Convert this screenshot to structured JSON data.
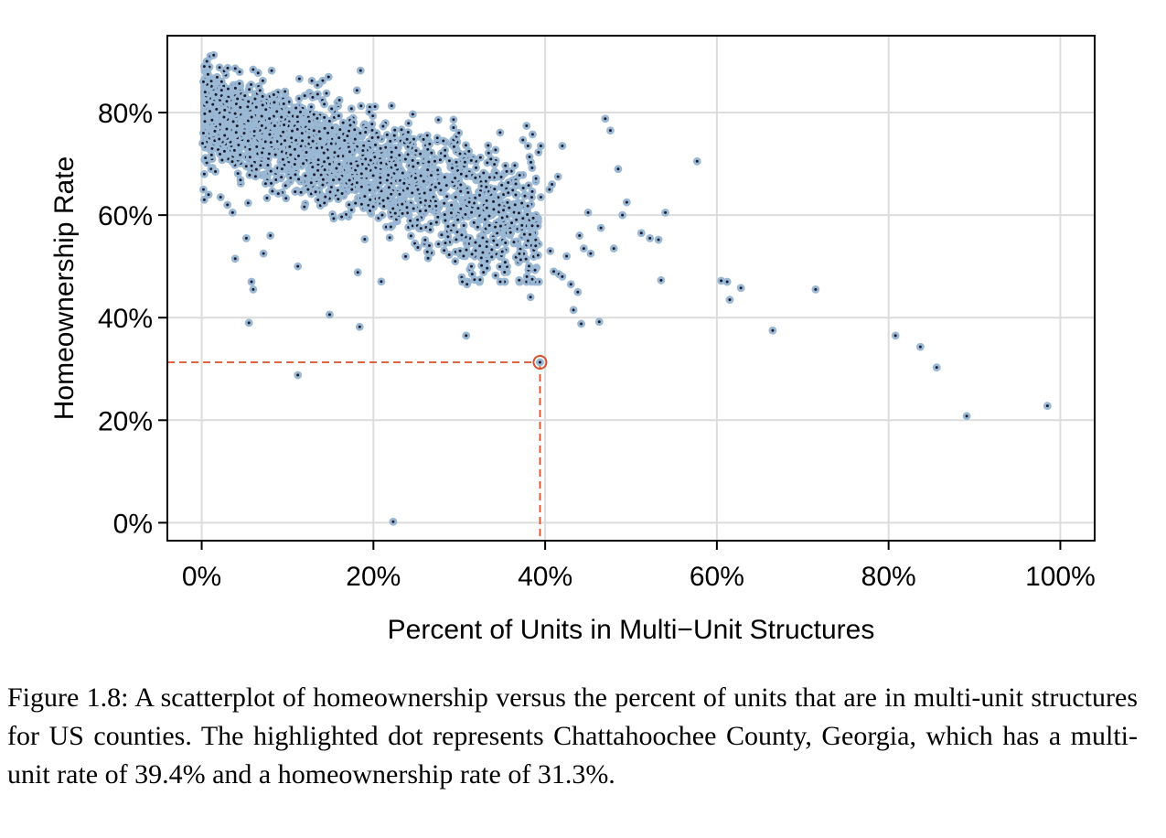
{
  "chart_data": {
    "type": "scatter",
    "xlabel": "Percent of Units in Multi−Unit Structures",
    "ylabel": "Homeownership Rate",
    "xlim": [
      -4,
      104
    ],
    "ylim": [
      -3.5,
      95
    ],
    "x_ticks": [
      "0%",
      "20%",
      "40%",
      "60%",
      "80%",
      "100%"
    ],
    "y_ticks": [
      "0%",
      "20%",
      "40%",
      "60%",
      "80%"
    ],
    "x_tick_values": [
      0,
      20,
      40,
      60,
      80,
      100
    ],
    "y_tick_values": [
      0,
      20,
      40,
      60,
      80
    ],
    "grid": true,
    "point_color": "#1a1a2e",
    "point_halo_color": "#9ab8d4",
    "highlight_color": "#d9502a",
    "highlight": {
      "x": 39.4,
      "y": 31.3
    },
    "bulk_points": 2900,
    "points": [
      [
        0.3,
        89
      ],
      [
        0.6,
        90
      ],
      [
        1.0,
        91
      ],
      [
        1.4,
        91.2
      ],
      [
        0.2,
        86
      ],
      [
        0.4,
        84
      ],
      [
        0.2,
        76
      ],
      [
        0.1,
        74
      ],
      [
        0.3,
        68
      ],
      [
        0.2,
        65
      ],
      [
        0.3,
        63
      ],
      [
        0.8,
        64
      ],
      [
        1.1,
        69
      ],
      [
        1.6,
        68.5
      ],
      [
        2.2,
        63.5
      ],
      [
        3.0,
        62
      ],
      [
        3.6,
        60.5
      ],
      [
        3.9,
        51.5
      ],
      [
        5.2,
        55.5
      ],
      [
        5.8,
        47
      ],
      [
        6.0,
        45.5
      ],
      [
        5.5,
        39
      ],
      [
        7.2,
        52.5
      ],
      [
        8.0,
        56
      ],
      [
        11.2,
        50
      ],
      [
        11.2,
        28.8
      ],
      [
        14.9,
        40.6
      ],
      [
        18.4,
        38.2
      ],
      [
        18.5,
        88.2
      ],
      [
        22.3,
        0.2
      ],
      [
        30.8,
        36.5
      ],
      [
        30.9,
        46.5
      ],
      [
        31.5,
        48.5
      ],
      [
        33.5,
        58
      ],
      [
        34.0,
        55
      ],
      [
        35.0,
        59.5
      ],
      [
        36.5,
        62
      ],
      [
        37.3,
        58
      ],
      [
        38.0,
        55
      ],
      [
        38.3,
        44
      ],
      [
        38.5,
        47.5
      ],
      [
        38.9,
        54
      ],
      [
        39.5,
        63.5
      ],
      [
        40.5,
        65
      ],
      [
        40.6,
        53
      ],
      [
        40.8,
        66
      ],
      [
        41.0,
        49
      ],
      [
        41.6,
        48.5
      ],
      [
        42.0,
        48
      ],
      [
        42.5,
        52
      ],
      [
        43.0,
        46.5
      ],
      [
        43.3,
        41.5
      ],
      [
        43.8,
        45
      ],
      [
        44.2,
        38.8
      ],
      [
        44.0,
        56
      ],
      [
        44.5,
        53.5
      ],
      [
        45.0,
        60.5
      ],
      [
        45.3,
        52.5
      ],
      [
        46.3,
        39.2
      ],
      [
        46.5,
        57.5
      ],
      [
        47.0,
        78.8
      ],
      [
        47.6,
        76.5
      ],
      [
        48.0,
        53.5
      ],
      [
        48.5,
        69
      ],
      [
        49.5,
        62.5
      ],
      [
        49.0,
        60
      ],
      [
        51.2,
        56.5
      ],
      [
        52.2,
        55.5
      ],
      [
        53.2,
        55.2
      ],
      [
        53.5,
        47.3
      ],
      [
        54.0,
        60.5
      ],
      [
        39.5,
        73.5
      ],
      [
        38.0,
        73.5
      ],
      [
        42.0,
        73.5
      ],
      [
        41.5,
        67.5
      ],
      [
        57.7,
        70.5
      ],
      [
        60.5,
        47.2
      ],
      [
        61.2,
        47.0
      ],
      [
        61.5,
        43.5
      ],
      [
        62.8,
        45.8
      ],
      [
        66.5,
        37.5
      ],
      [
        71.5,
        45.5
      ],
      [
        80.8,
        36.5
      ],
      [
        83.7,
        34.3
      ],
      [
        85.6,
        30.3
      ],
      [
        89.1,
        20.8
      ],
      [
        98.5,
        22.8
      ]
    ]
  },
  "caption": "Figure 1.8: A scatterplot of homeownership versus the percent of units that are in multi-unit structures for US counties. The highlighted dot represents Chattahoochee County, Georgia, which has a multi-unit rate of 39.4% and a homeownership rate of 31.3%."
}
